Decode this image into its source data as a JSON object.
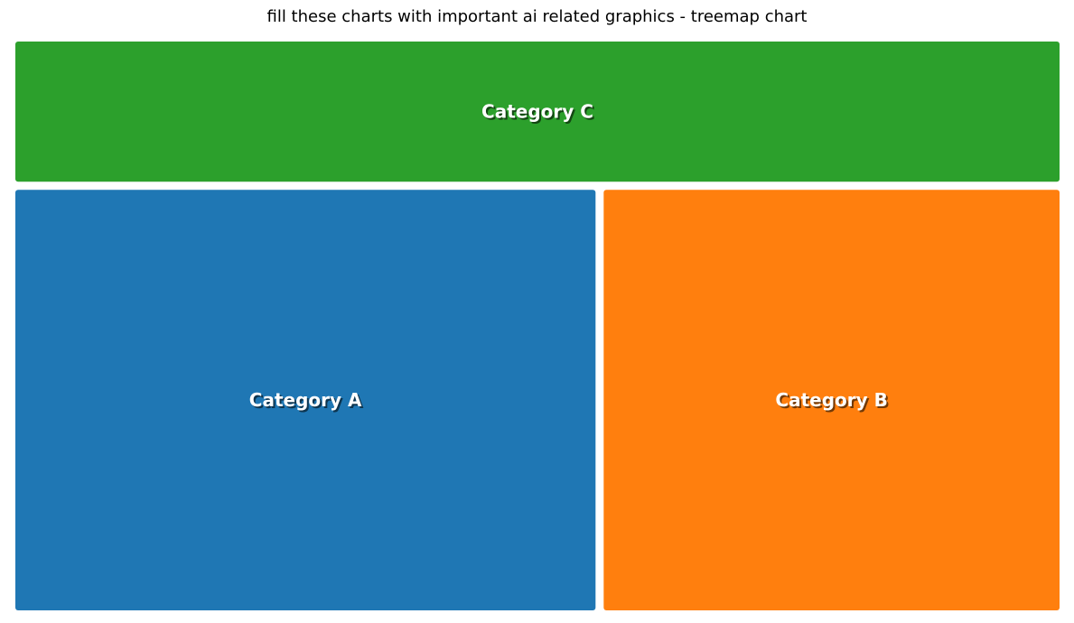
{
  "chart_data": {
    "type": "treemap",
    "title": "fill these charts with important ai related graphics - treemap chart",
    "items": [
      {
        "label": "Category C",
        "value": 25,
        "color": "#2ca02c"
      },
      {
        "label": "Category A",
        "value": 42,
        "color": "#1f77b4"
      },
      {
        "label": "Category B",
        "value": 33,
        "color": "#ff7f0e"
      }
    ]
  }
}
